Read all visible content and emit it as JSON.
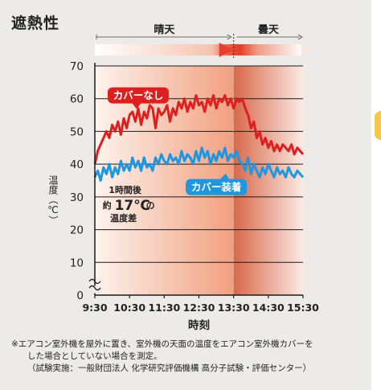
{
  "title": "遮熱性",
  "chart_data": {
    "type": "line",
    "xlabel": "時刻",
    "ylabel": "温度（℃）",
    "x_ticks": [
      "9:30",
      "10:30",
      "11:30",
      "12:30",
      "13:30",
      "14:30",
      "15:30"
    ],
    "y_ticks": [
      0,
      10,
      20,
      30,
      40,
      50,
      60,
      70
    ],
    "ylim": [
      0,
      70
    ],
    "xlim": [
      "9:30",
      "15:30"
    ],
    "grid": true,
    "axis_break": true,
    "periods": [
      {
        "label": "晴天",
        "from": "9:30",
        "to": "13:30"
      },
      {
        "label": "曇天",
        "from": "13:30",
        "to": "15:30"
      }
    ],
    "series": [
      {
        "name": "カバーなし",
        "color": "#dd1f1f",
        "x": [
          "9:30",
          "9:35",
          "9:40",
          "9:45",
          "9:50",
          "9:55",
          "10:00",
          "10:05",
          "10:10",
          "10:15",
          "10:20",
          "10:25",
          "10:30",
          "10:35",
          "10:40",
          "10:45",
          "10:50",
          "10:55",
          "11:00",
          "11:05",
          "11:10",
          "11:15",
          "11:20",
          "11:25",
          "11:30",
          "11:35",
          "11:40",
          "11:45",
          "11:50",
          "11:55",
          "12:00",
          "12:05",
          "12:10",
          "12:15",
          "12:20",
          "12:25",
          "12:30",
          "12:35",
          "12:40",
          "12:45",
          "12:50",
          "12:55",
          "13:00",
          "13:05",
          "13:10",
          "13:15",
          "13:20",
          "13:25",
          "13:30",
          "13:35",
          "13:40",
          "13:45",
          "13:50",
          "13:55",
          "14:00",
          "14:05",
          "14:10",
          "14:15",
          "14:20",
          "14:25",
          "14:30",
          "14:35",
          "14:40",
          "14:45",
          "14:50",
          "14:55",
          "15:00",
          "15:05",
          "15:10",
          "15:15",
          "15:20",
          "15:25",
          "15:30"
        ],
        "values": [
          40,
          44,
          46,
          48,
          50,
          48,
          52,
          50,
          53,
          49,
          54,
          51,
          55,
          56,
          53,
          57,
          52,
          56,
          54,
          58,
          57,
          51,
          57,
          55,
          56,
          58,
          53,
          57,
          55,
          59,
          57,
          60,
          56,
          59,
          57,
          61,
          58,
          59,
          56,
          60,
          58,
          61,
          57,
          60,
          59,
          61,
          58,
          60,
          57,
          60,
          59,
          60,
          57,
          55,
          51,
          53,
          48,
          50,
          46,
          48,
          45,
          47,
          44,
          46,
          44,
          46,
          45,
          44,
          46,
          43,
          45,
          44,
          43
        ],
        "label_pos": [
          "10:45",
          61
        ]
      },
      {
        "name": "カバー装着",
        "color": "#1e96e0",
        "x": [
          "9:30",
          "9:35",
          "9:40",
          "9:45",
          "9:50",
          "9:55",
          "10:00",
          "10:05",
          "10:10",
          "10:15",
          "10:20",
          "10:25",
          "10:30",
          "10:35",
          "10:40",
          "10:45",
          "10:50",
          "10:55",
          "11:00",
          "11:05",
          "11:10",
          "11:15",
          "11:20",
          "11:25",
          "11:30",
          "11:35",
          "11:40",
          "11:45",
          "11:50",
          "11:55",
          "12:00",
          "12:05",
          "12:10",
          "12:15",
          "12:20",
          "12:25",
          "12:30",
          "12:35",
          "12:40",
          "12:45",
          "12:50",
          "12:55",
          "13:00",
          "13:05",
          "13:10",
          "13:15",
          "13:20",
          "13:25",
          "13:30",
          "13:35",
          "13:40",
          "13:45",
          "13:50",
          "13:55",
          "14:00",
          "14:05",
          "14:10",
          "14:15",
          "14:20",
          "14:25",
          "14:30",
          "14:35",
          "14:40",
          "14:45",
          "14:50",
          "14:55",
          "15:00",
          "15:05",
          "15:10",
          "15:15",
          "15:20",
          "15:25",
          "15:30"
        ],
        "values": [
          36,
          38,
          35,
          39,
          37,
          40,
          36,
          39,
          37,
          41,
          38,
          40,
          38,
          42,
          39,
          41,
          38,
          42,
          39,
          40,
          38,
          42,
          40,
          43,
          41,
          40,
          43,
          41,
          42,
          40,
          44,
          41,
          43,
          42,
          40,
          44,
          41,
          45,
          42,
          44,
          40,
          43,
          41,
          44,
          42,
          45,
          41,
          43,
          42,
          44,
          41,
          40,
          38,
          42,
          37,
          40,
          38,
          36,
          39,
          37,
          40,
          38,
          36,
          39,
          37,
          38,
          36,
          39,
          37,
          36,
          38,
          37,
          36
        ],
        "label_pos": [
          "13:00",
          33
        ]
      }
    ],
    "annotation": {
      "lines": [
        "1時間後",
        "約",
        "17℃",
        "の",
        "温度差"
      ],
      "at": "10:00"
    }
  },
  "footnote": {
    "line1": "※エアコン室外機を屋外に置き、室外機の天面の温度をエアコン室外機カバーを",
    "line2": "した場合としていない場合を測定。",
    "line3": "（試験実施：一般財団法人 化学研究評価機構 高分子試験・評価センター）"
  }
}
